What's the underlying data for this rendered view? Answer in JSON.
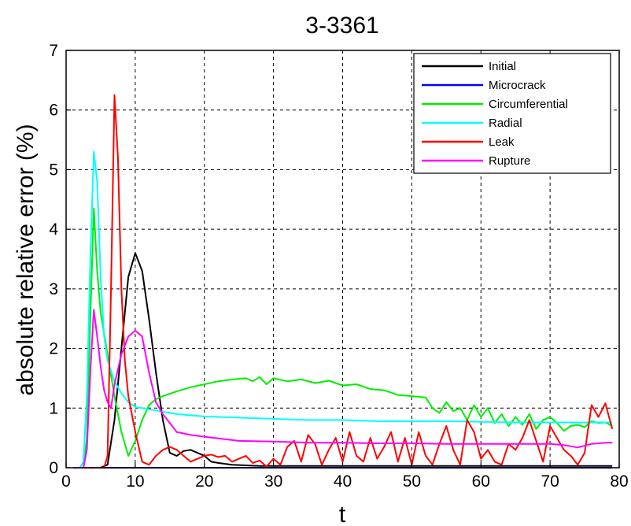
{
  "chart_data": {
    "type": "line",
    "title": "3-3361",
    "xlabel": "t",
    "ylabel": "absolute relative error (%)",
    "xlim": [
      0,
      80
    ],
    "ylim": [
      0,
      7
    ],
    "xticks": [
      0,
      10,
      20,
      30,
      40,
      50,
      60,
      70,
      80
    ],
    "yticks": [
      0,
      1,
      2,
      3,
      4,
      5,
      6,
      7
    ],
    "grid": true,
    "legend_position": "top-right",
    "series": [
      {
        "name": "Initial",
        "color": "#000000",
        "x": [
          1,
          5,
          6,
          7,
          8,
          9,
          10,
          11,
          12,
          13,
          14,
          15,
          16,
          17,
          18,
          19,
          20,
          21,
          22,
          24,
          26,
          28,
          30,
          35,
          40,
          45,
          50,
          55,
          60,
          65,
          70,
          75,
          79
        ],
        "y": [
          0,
          0,
          0.05,
          0.8,
          2.0,
          3.2,
          3.6,
          3.3,
          2.5,
          1.6,
          0.8,
          0.25,
          0.2,
          0.28,
          0.3,
          0.25,
          0.2,
          0.1,
          0.08,
          0.05,
          0.04,
          0.03,
          0.03,
          0.03,
          0.03,
          0.03,
          0.03,
          0.03,
          0.03,
          0.03,
          0.03,
          0.03,
          0.03
        ]
      },
      {
        "name": "Microcrack",
        "color": "#0000ff",
        "x": [
          1,
          10,
          20,
          30,
          40,
          50,
          60,
          70,
          79
        ],
        "y": [
          0,
          0,
          0,
          0,
          0,
          0,
          0,
          0,
          0
        ]
      },
      {
        "name": "Circumferential",
        "color": "#00ee00",
        "x": [
          1,
          2.5,
          3,
          3.5,
          4,
          4.5,
          5,
          6,
          7,
          8,
          9,
          10,
          11,
          12,
          13,
          14,
          16,
          18,
          20,
          22,
          24,
          26,
          27,
          28,
          29,
          30,
          32,
          34,
          36,
          38,
          40,
          42,
          44,
          46,
          48,
          50,
          52,
          53,
          54,
          55,
          56,
          57,
          58,
          59,
          60,
          61,
          62,
          63,
          64,
          65,
          66,
          67,
          68,
          69,
          70,
          71,
          72,
          73,
          74,
          75,
          76,
          77,
          78,
          79
        ],
        "y": [
          0,
          0,
          0.5,
          2.5,
          4.35,
          3.3,
          2.6,
          1.9,
          1.2,
          0.6,
          0.2,
          0.45,
          0.8,
          1.05,
          1.15,
          1.2,
          1.28,
          1.35,
          1.4,
          1.45,
          1.48,
          1.5,
          1.45,
          1.52,
          1.4,
          1.5,
          1.45,
          1.48,
          1.42,
          1.46,
          1.38,
          1.4,
          1.32,
          1.3,
          1.22,
          1.2,
          1.18,
          1.0,
          0.92,
          1.1,
          0.95,
          1.0,
          0.8,
          1.05,
          0.85,
          1.0,
          0.75,
          0.9,
          0.7,
          0.85,
          0.72,
          0.9,
          0.65,
          0.8,
          0.85,
          0.75,
          0.62,
          0.7,
          0.72,
          0.68,
          0.78,
          0.75,
          0.76,
          0.7
        ]
      },
      {
        "name": "Radial",
        "color": "#00ffff",
        "x": [
          1,
          2,
          2.5,
          3,
          3.5,
          4,
          4.5,
          5,
          5.5,
          6,
          7,
          8,
          9,
          10,
          12,
          14,
          16,
          18,
          20,
          25,
          30,
          35,
          40,
          45,
          50,
          55,
          60,
          65,
          70,
          75,
          79
        ],
        "y": [
          0,
          0,
          0.1,
          1.2,
          3.5,
          5.3,
          4.8,
          3.2,
          2.2,
          1.8,
          1.45,
          1.25,
          1.1,
          1.02,
          0.98,
          0.94,
          0.9,
          0.88,
          0.86,
          0.84,
          0.82,
          0.8,
          0.8,
          0.78,
          0.78,
          0.78,
          0.77,
          0.76,
          0.76,
          0.76,
          0.76
        ]
      },
      {
        "name": "Leak",
        "color": "#ff0000",
        "x": [
          1,
          5,
          5.5,
          6,
          6.5,
          7,
          7.5,
          8,
          8.5,
          9,
          9.5,
          10,
          11,
          12,
          13,
          14,
          15,
          16,
          17,
          18,
          19,
          20,
          21,
          22,
          23,
          24,
          25,
          26,
          27,
          28,
          29,
          30,
          31,
          32,
          33,
          34,
          35,
          36,
          37,
          38,
          39,
          40,
          41,
          42,
          43,
          44,
          45,
          46,
          47,
          48,
          49,
          50,
          51,
          52,
          53,
          54,
          55,
          56,
          57,
          58,
          59,
          60,
          61,
          62,
          63,
          64,
          65,
          66,
          67,
          68,
          69,
          70,
          71,
          72,
          73,
          74,
          75,
          76,
          77,
          78,
          79
        ],
        "y": [
          0,
          0,
          0,
          0.2,
          3.0,
          6.25,
          5.2,
          3.0,
          1.8,
          1.2,
          0.9,
          0.6,
          0.1,
          0.05,
          0.2,
          0.3,
          0.35,
          0.3,
          0.2,
          0.1,
          0.15,
          0.2,
          0.22,
          0.18,
          0.2,
          0.1,
          0.15,
          0.2,
          0.08,
          0.12,
          0.02,
          0.15,
          0.05,
          0.35,
          0.45,
          0.1,
          0.55,
          0.4,
          0.05,
          0.3,
          0.5,
          0.1,
          0.6,
          0.2,
          0.1,
          0.5,
          0.15,
          0.35,
          0.6,
          0.1,
          0.5,
          0.05,
          0.6,
          0.2,
          0.05,
          0.4,
          0.7,
          0.3,
          0.05,
          0.8,
          0.6,
          0.15,
          0.3,
          0.1,
          0.05,
          0.4,
          0.3,
          0.5,
          0.8,
          0.45,
          0.1,
          0.7,
          0.5,
          0.3,
          0.2,
          0.05,
          0.25,
          1.05,
          0.85,
          1.08,
          0.65
        ]
      },
      {
        "name": "Rupture",
        "color": "#ff00ff",
        "x": [
          1,
          2.5,
          3,
          3.5,
          4,
          4.5,
          5,
          5.5,
          6,
          6.5,
          7,
          8,
          9,
          10,
          11,
          12,
          13,
          14,
          15,
          16,
          18,
          20,
          25,
          30,
          35,
          40,
          45,
          50,
          55,
          60,
          65,
          70,
          72,
          74,
          76,
          78,
          79
        ],
        "y": [
          0,
          0,
          0.3,
          1.6,
          2.65,
          2.2,
          1.7,
          1.3,
          1.1,
          1.0,
          1.4,
          1.9,
          2.2,
          2.3,
          2.2,
          1.6,
          1.1,
          0.9,
          0.75,
          0.6,
          0.55,
          0.52,
          0.45,
          0.44,
          0.42,
          0.42,
          0.41,
          0.41,
          0.4,
          0.4,
          0.4,
          0.4,
          0.38,
          0.34,
          0.4,
          0.42,
          0.42
        ]
      }
    ]
  }
}
